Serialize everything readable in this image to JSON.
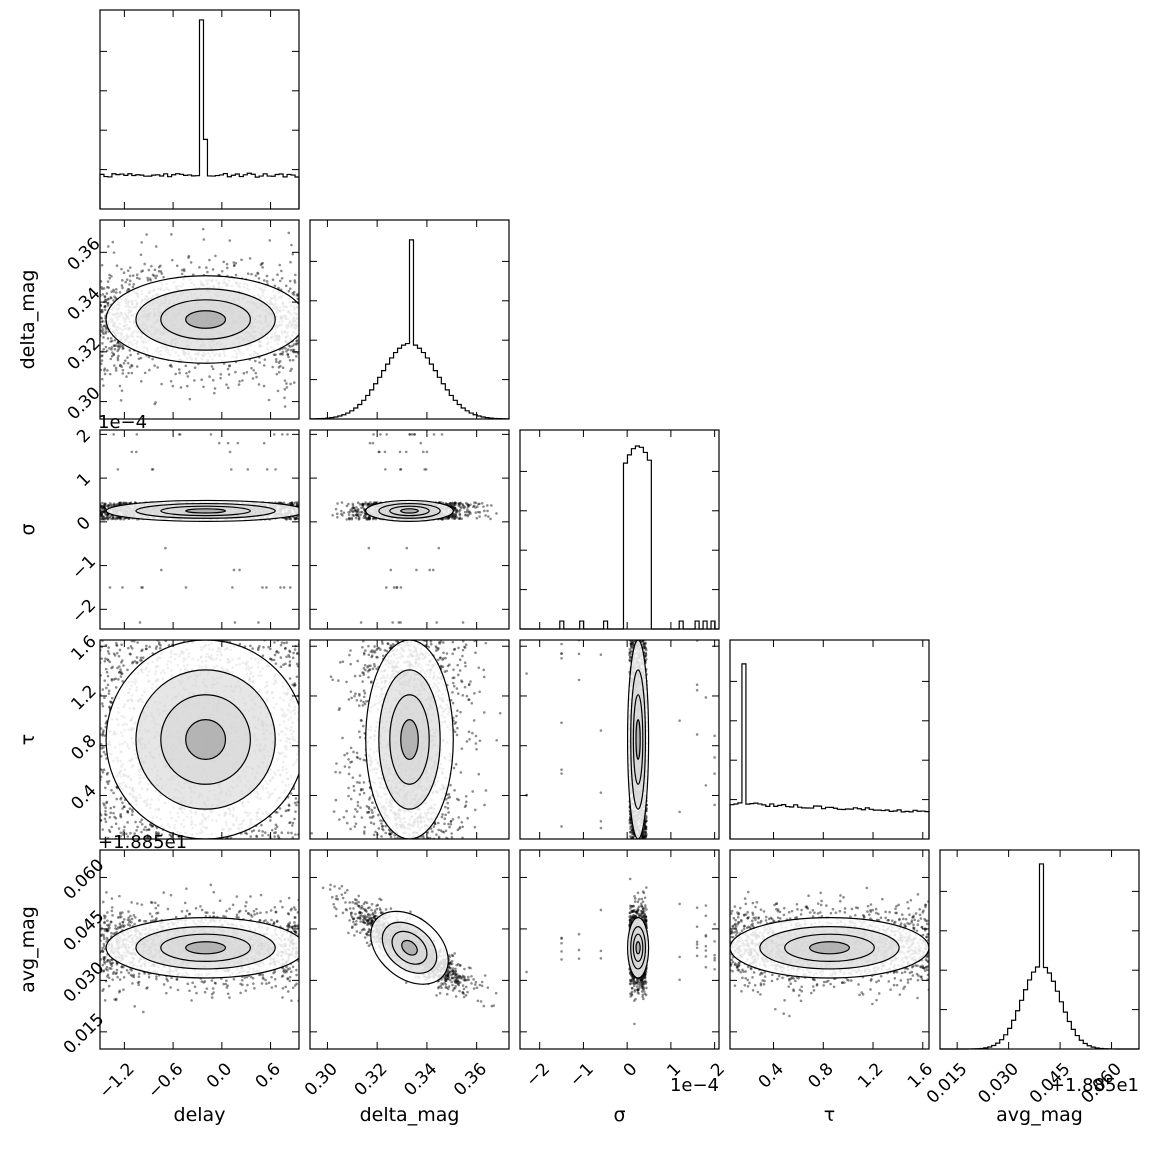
{
  "chart_data": {
    "type": "corner",
    "description_of_type": "triangular corner plot of MCMC posterior samples: 1D histograms on the diagonal, 2D scatter + density contours below",
    "parameters": [
      {
        "name": "delay",
        "label": "delay",
        "range": [
          -1.5,
          0.95
        ],
        "ticks": [
          -1.2,
          -0.6,
          0.0,
          0.6
        ],
        "tick_labels": [
          "−1.2",
          "−0.6",
          "0.0",
          "0.6"
        ],
        "offset_text": ""
      },
      {
        "name": "delta_mag",
        "label": "delta_mag",
        "range": [
          0.293,
          0.373
        ],
        "ticks": [
          0.3,
          0.32,
          0.34,
          0.36
        ],
        "tick_labels": [
          "0.30",
          "0.32",
          "0.34",
          "0.36"
        ],
        "offset_text": ""
      },
      {
        "name": "sigma",
        "label": "σ",
        "range": [
          -2.45,
          2.1
        ],
        "ticks": [
          -2,
          -1,
          0,
          1,
          2
        ],
        "tick_labels": [
          "−2",
          "−1",
          "0",
          "1",
          "2"
        ],
        "offset_text": "1e−4"
      },
      {
        "name": "tau",
        "label": "τ",
        "range": [
          0.05,
          1.65
        ],
        "ticks": [
          0.4,
          0.8,
          1.2,
          1.6
        ],
        "tick_labels": [
          "0.4",
          "0.8",
          "1.2",
          "1.6"
        ],
        "offset_text": ""
      },
      {
        "name": "avg_mag",
        "label": "avg_mag",
        "range": [
          0.01,
          0.068
        ],
        "ticks": [
          0.015,
          0.03,
          0.045,
          0.06
        ],
        "tick_labels": [
          "0.015",
          "0.030",
          "0.045",
          "0.060"
        ],
        "offset_text": "+1.885e1"
      }
    ],
    "histograms": [
      {
        "param": "delay",
        "shape": "flat with sharp spike",
        "baseline_fraction": 0.17,
        "spike_center": -0.25,
        "spike_height_fraction": 0.95
      },
      {
        "param": "delta_mag",
        "shape": "gaussian with narrow spike",
        "mean": 0.333,
        "std": 0.011,
        "peak_fraction": 0.38,
        "spike_center": 0.3335,
        "spike_height_fraction": 0.9
      },
      {
        "param": "sigma",
        "shape": "narrow peak with outliers",
        "peak_range_1e4": [
          -0.05,
          0.55
        ],
        "peak_height_fraction": 0.92
      },
      {
        "param": "tau",
        "shape": "spike at low end then slowly decaying plateau",
        "spike_center": 0.15,
        "spike_height_fraction": 0.88,
        "plateau_fraction": 0.18
      },
      {
        "param": "avg_mag",
        "shape": "gaussian with narrow spike",
        "mean": 0.0395,
        "std": 0.0055,
        "peak_fraction": 0.42,
        "spike_center": 0.0395,
        "spike_height_fraction": 0.93
      }
    ],
    "correlations": [
      {
        "pair": [
          "delta_mag",
          "avg_mag"
        ],
        "rho": -0.85
      }
    ],
    "grid": false,
    "legend": ""
  }
}
